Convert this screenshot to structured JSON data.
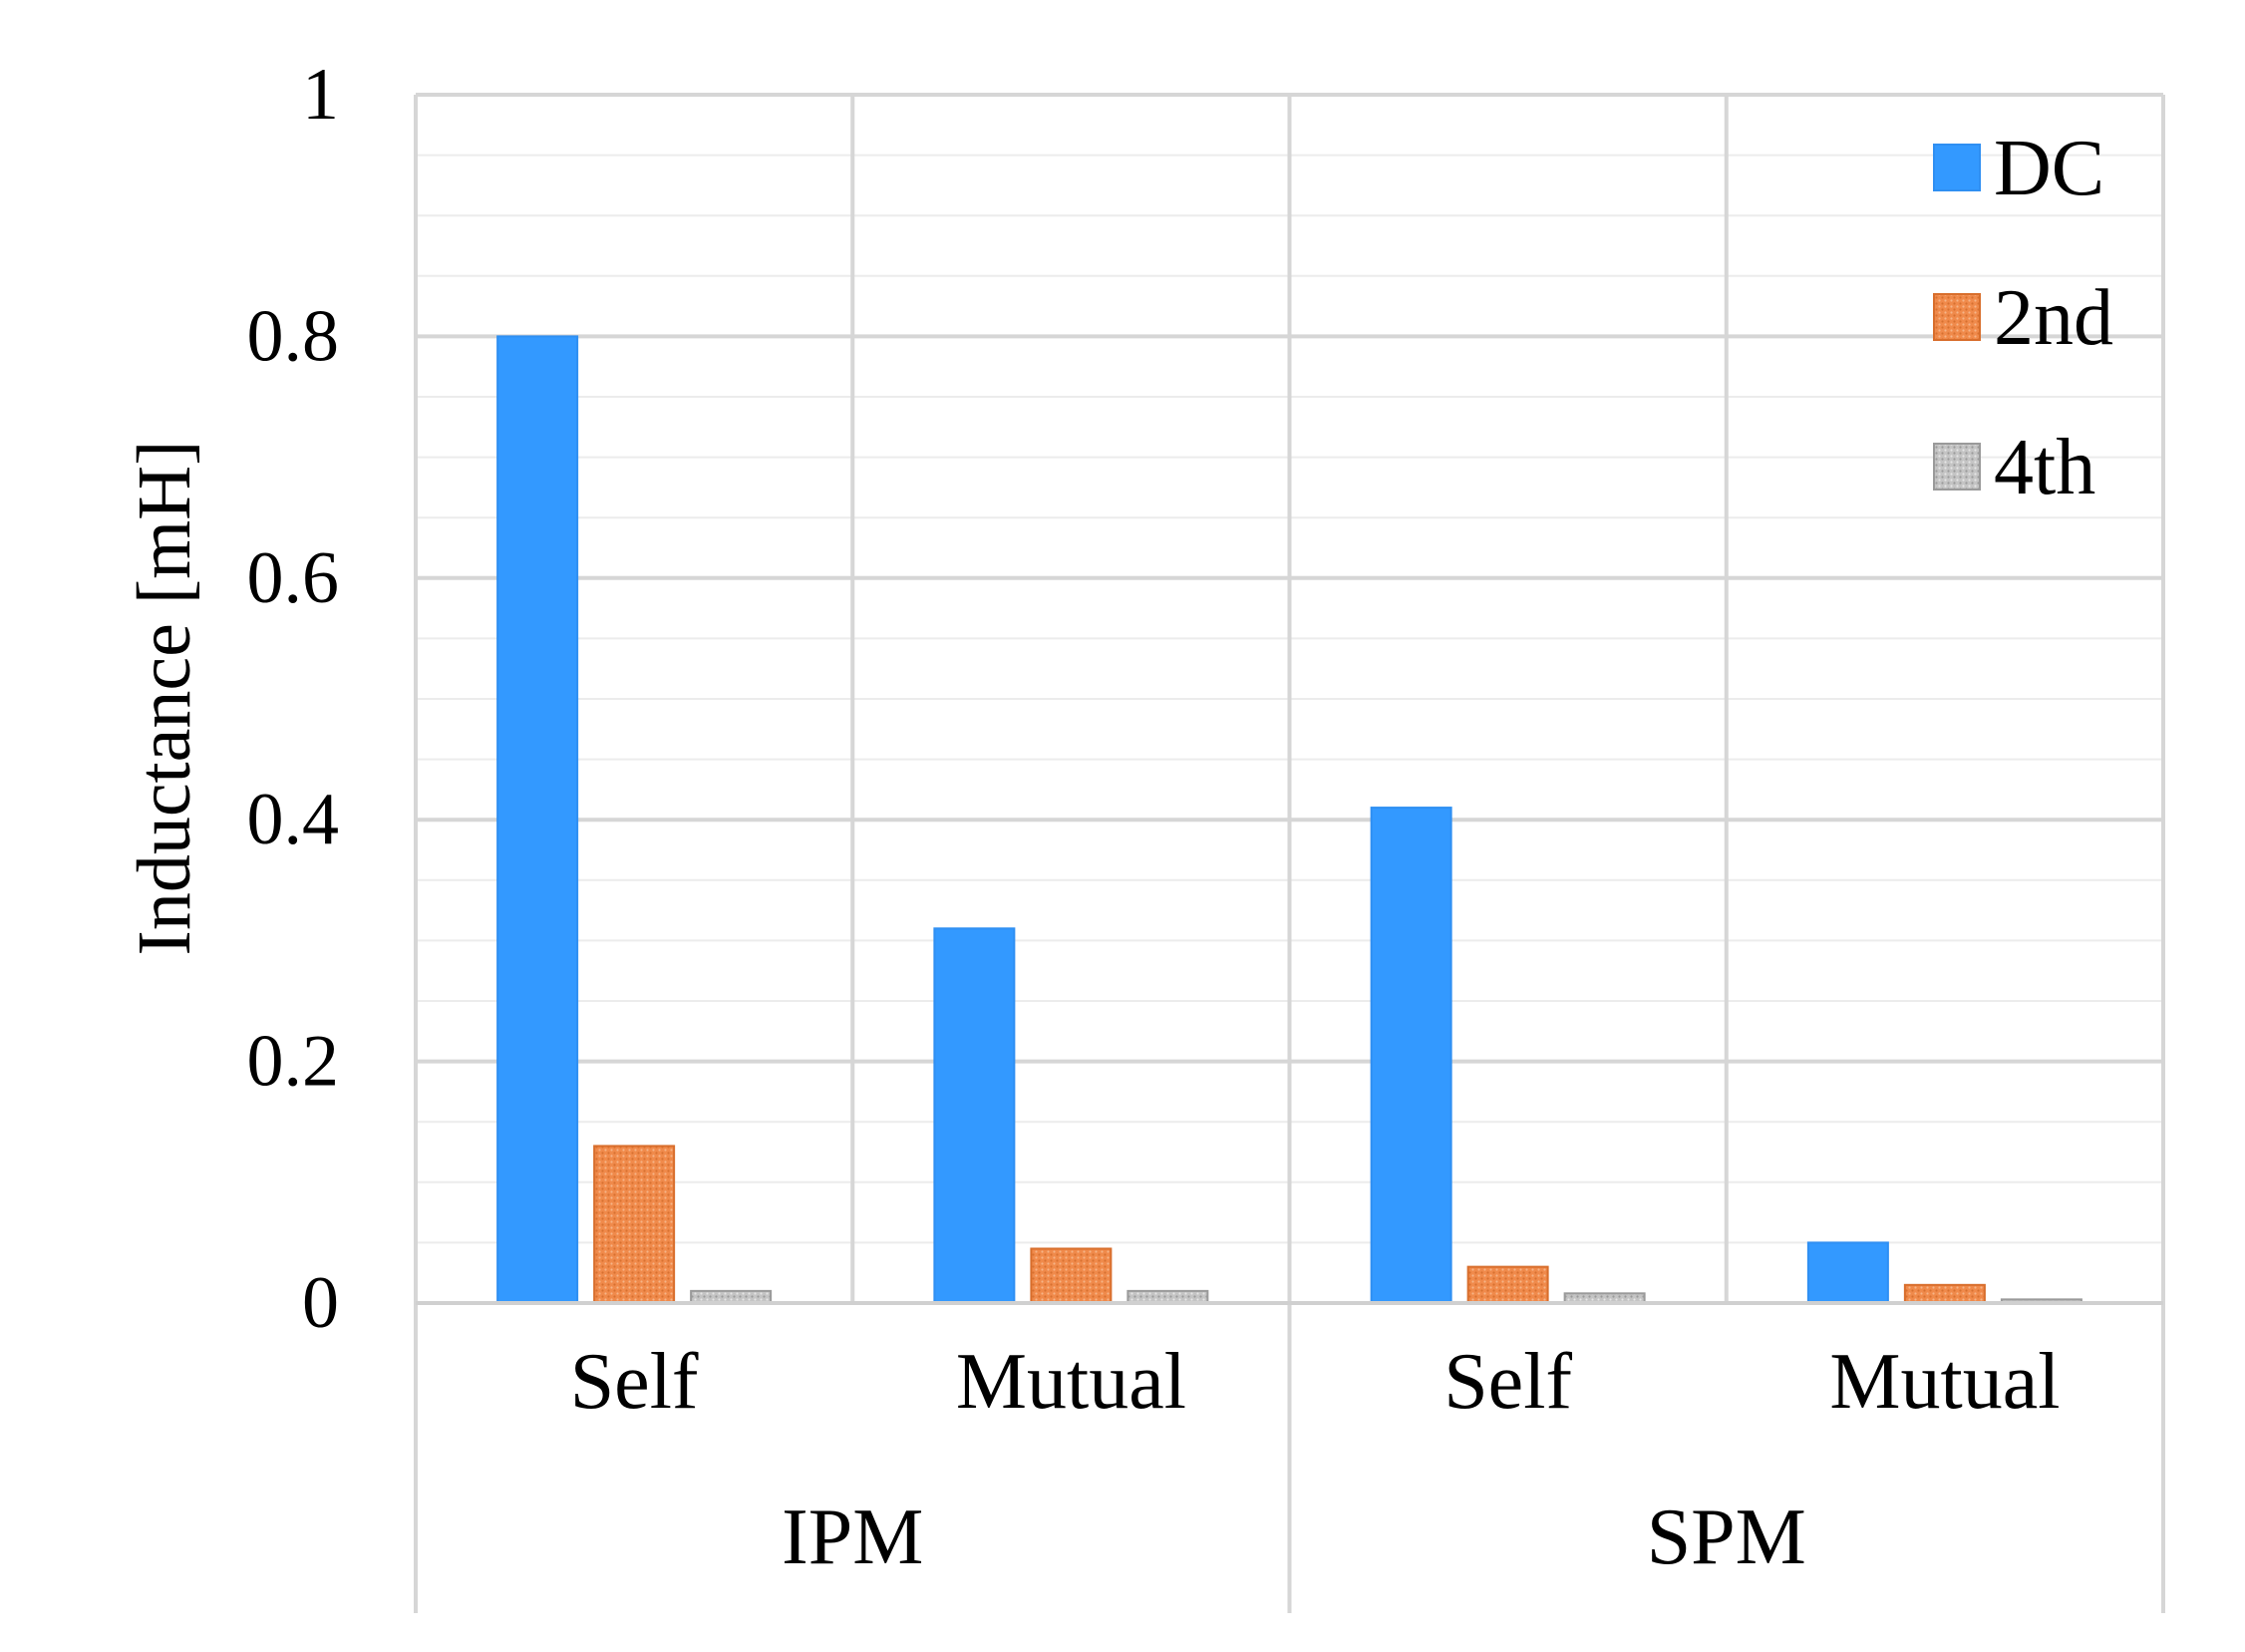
{
  "chart_data": {
    "type": "bar",
    "title": "",
    "ylabel": "Inductance [mH]",
    "xlabel": "",
    "ylim": [
      0,
      1
    ],
    "yticks": [
      0,
      0.2,
      0.4,
      0.6,
      0.8,
      1
    ],
    "ytick_labels": [
      "0",
      "0.2",
      "0.4",
      "0.6",
      "0.8",
      "1"
    ],
    "minor_grid_step": 0.05,
    "grid": true,
    "legend_position": "top-right",
    "groups": [
      {
        "label": "IPM",
        "categories": [
          "Self",
          "Mutual"
        ]
      },
      {
        "label": "SPM",
        "categories": [
          "Self",
          "Mutual"
        ]
      }
    ],
    "categories": [
      "Self",
      "Mutual",
      "Self",
      "Mutual"
    ],
    "series": [
      {
        "name": "DC",
        "color": "#3399ff",
        "pattern": "solid",
        "values": [
          0.8,
          0.31,
          0.41,
          0.05
        ]
      },
      {
        "name": "2nd",
        "color": "#f08a4b",
        "pattern": "dotted",
        "values": [
          0.13,
          0.045,
          0.03,
          0.015
        ]
      },
      {
        "name": "4th",
        "color": "#b8b8b8",
        "pattern": "dotted",
        "values": [
          0.01,
          0.01,
          0.008,
          0.003
        ]
      }
    ]
  }
}
